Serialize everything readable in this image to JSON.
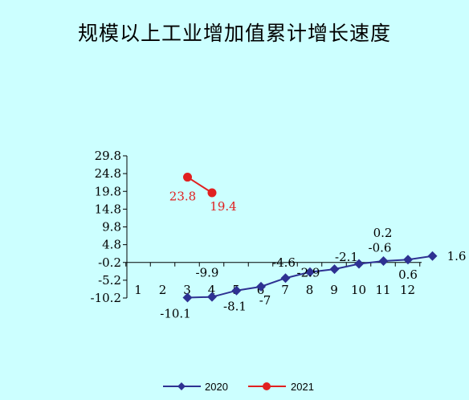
{
  "title": "规模以上工业增加值累计增长速度",
  "colors": {
    "background": "#ccffff",
    "series_2020": "#2e3192",
    "series_2021": "#e02020"
  },
  "chart_data": {
    "type": "line",
    "title": "规模以上工业增加值累计增长速度",
    "xlabel": "",
    "ylabel": "",
    "categories": [
      "1",
      "2",
      "3",
      "4",
      "5",
      "6",
      "7",
      "8",
      "9",
      "10",
      "11",
      "12"
    ],
    "y_ticks": [
      "29.8",
      "24.8",
      "19.8",
      "14.8",
      "9.8",
      "4.8",
      "-0.2",
      "-5.2",
      "-10.2"
    ],
    "ylim": [
      -10.2,
      29.8
    ],
    "x_axis_crosses_at": -0.2,
    "grid": false,
    "legend_position": "bottom",
    "series": [
      {
        "name": "2020",
        "marker": "diamond",
        "values": [
          null,
          -10.1,
          -9.9,
          -8.1,
          -7,
          -4.6,
          -2.9,
          -2.1,
          -0.6,
          0.2,
          0.6,
          1.6
        ],
        "labels": [
          "",
          "-10.1",
          "-9.9",
          "-8.1",
          "-7",
          "-4.6",
          "-2.9",
          "-2.1",
          "-0.6",
          "0.2",
          "0.6",
          "1.6"
        ]
      },
      {
        "name": "2021",
        "marker": "circle",
        "values": [
          null,
          23.8,
          19.4,
          null,
          null,
          null,
          null,
          null,
          null,
          null,
          null,
          null
        ],
        "labels": [
          "",
          "23.8",
          "19.4",
          "",
          "",
          "",
          "",
          "",
          "",
          "",
          "",
          ""
        ]
      }
    ]
  }
}
